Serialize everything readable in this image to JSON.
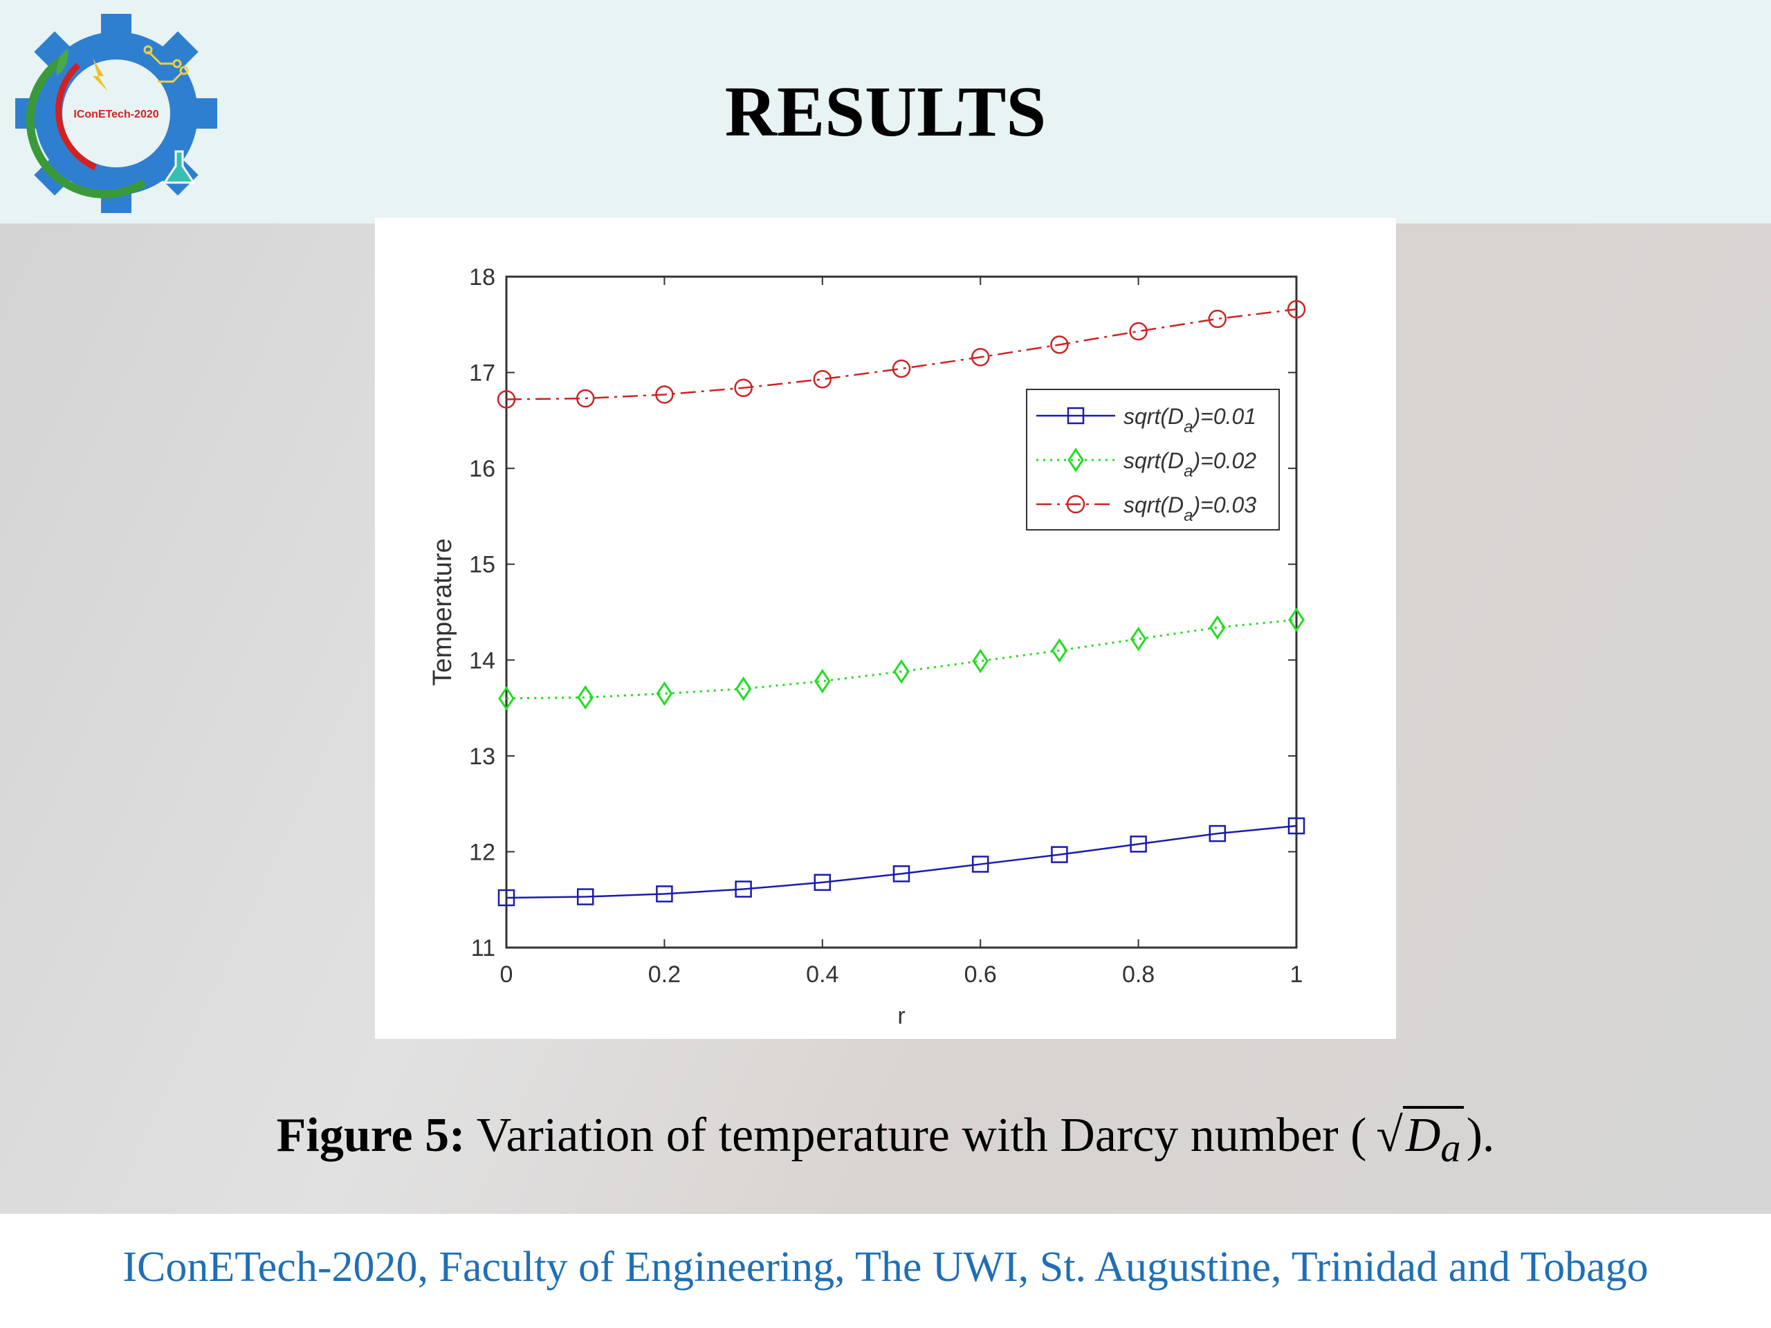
{
  "slide": {
    "title": "RESULTS",
    "logo_text": "IConETech-2020"
  },
  "caption": {
    "lead": "Figure 5:",
    "text": "Variation of temperature with Darcy number (",
    "radicand": "D",
    "sub": "a",
    "close": ")."
  },
  "footer": {
    "text": "IConETech-2020, Faculty of Engineering, The UWI, St. Augustine, Trinidad and Tobago"
  },
  "colors": {
    "header_bg": "#e8f3f4",
    "footer_text": "#1f6fb5",
    "series_blue": "#1a1ab0",
    "series_green": "#22dd22",
    "series_red": "#cc2222"
  },
  "chart_data": {
    "type": "line",
    "title": "",
    "xlabel": "r",
    "ylabel": "Temperature",
    "xlim": [
      0,
      1
    ],
    "ylim": [
      11,
      18
    ],
    "xticks": [
      "0",
      "0.2",
      "0.4",
      "0.6",
      "0.8",
      "1"
    ],
    "yticks": [
      "11",
      "12",
      "13",
      "14",
      "15",
      "16",
      "17",
      "18"
    ],
    "grid": false,
    "legend_position": "top-right",
    "x": [
      0,
      0.1,
      0.2,
      0.3,
      0.4,
      0.5,
      0.6,
      0.7,
      0.8,
      0.9,
      1.0
    ],
    "series": [
      {
        "name": "sqrt(D_a)=0.01",
        "legend_main": "sqrt(D",
        "legend_sub": "a",
        "legend_tail": ")=0.01",
        "color": "#1a1ab0",
        "marker": "square",
        "line": "solid",
        "values": [
          11.52,
          11.53,
          11.56,
          11.61,
          11.68,
          11.77,
          11.87,
          11.97,
          12.08,
          12.19,
          12.27
        ]
      },
      {
        "name": "sqrt(D_a)=0.02",
        "legend_main": "sqrt(D",
        "legend_sub": "a",
        "legend_tail": ")=0.02",
        "color": "#22dd22",
        "marker": "diamond",
        "line": "dotted",
        "values": [
          13.6,
          13.61,
          13.65,
          13.7,
          13.78,
          13.88,
          13.99,
          14.1,
          14.22,
          14.34,
          14.42
        ]
      },
      {
        "name": "sqrt(D_a)=0.03",
        "legend_main": "sqrt(D",
        "legend_sub": "a",
        "legend_tail": ")=0.03",
        "color": "#cc2222",
        "marker": "circle",
        "line": "dashdot",
        "values": [
          16.72,
          16.73,
          16.77,
          16.84,
          16.93,
          17.04,
          17.16,
          17.29,
          17.43,
          17.56,
          17.66
        ]
      }
    ]
  }
}
